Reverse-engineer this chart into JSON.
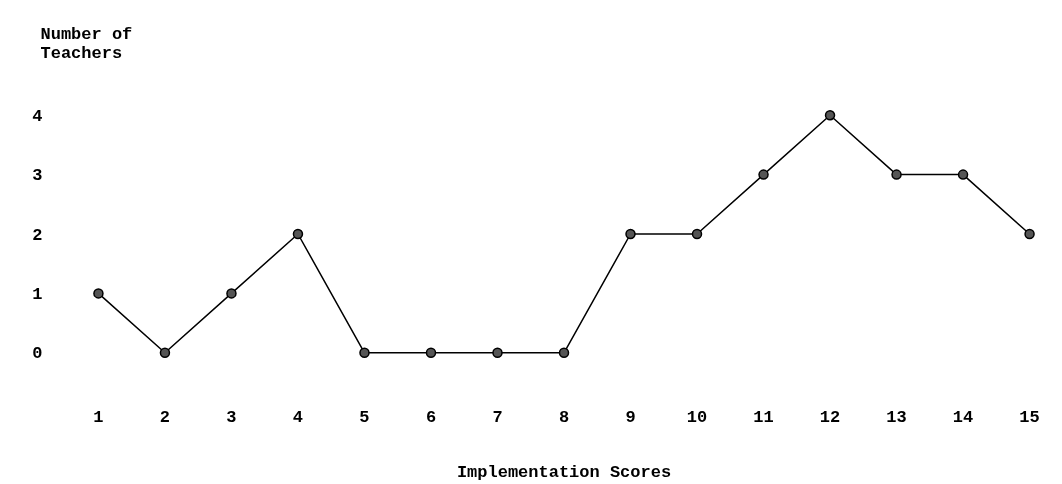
{
  "chart_data": {
    "type": "line",
    "xlabel": "Implementation Scores",
    "ylabel": "Number of\nTeachers",
    "x": [
      1,
      2,
      3,
      4,
      5,
      6,
      7,
      8,
      9,
      10,
      11,
      12,
      13,
      14,
      15
    ],
    "series": [
      {
        "color": "#000000",
        "values": [
          1,
          0,
          1,
          2,
          0,
          0,
          0,
          0,
          2,
          2,
          3,
          4,
          3,
          3,
          2
        ]
      }
    ],
    "xlim": [
      1,
      15
    ],
    "ylim": [
      0,
      4
    ],
    "xticks": [
      1,
      2,
      3,
      4,
      5,
      6,
      7,
      8,
      9,
      10,
      11,
      12,
      13,
      14,
      15
    ],
    "yticks": [
      0,
      1,
      2,
      3,
      4
    ],
    "grid": false,
    "marker": "circle",
    "line_style": "solid"
  }
}
